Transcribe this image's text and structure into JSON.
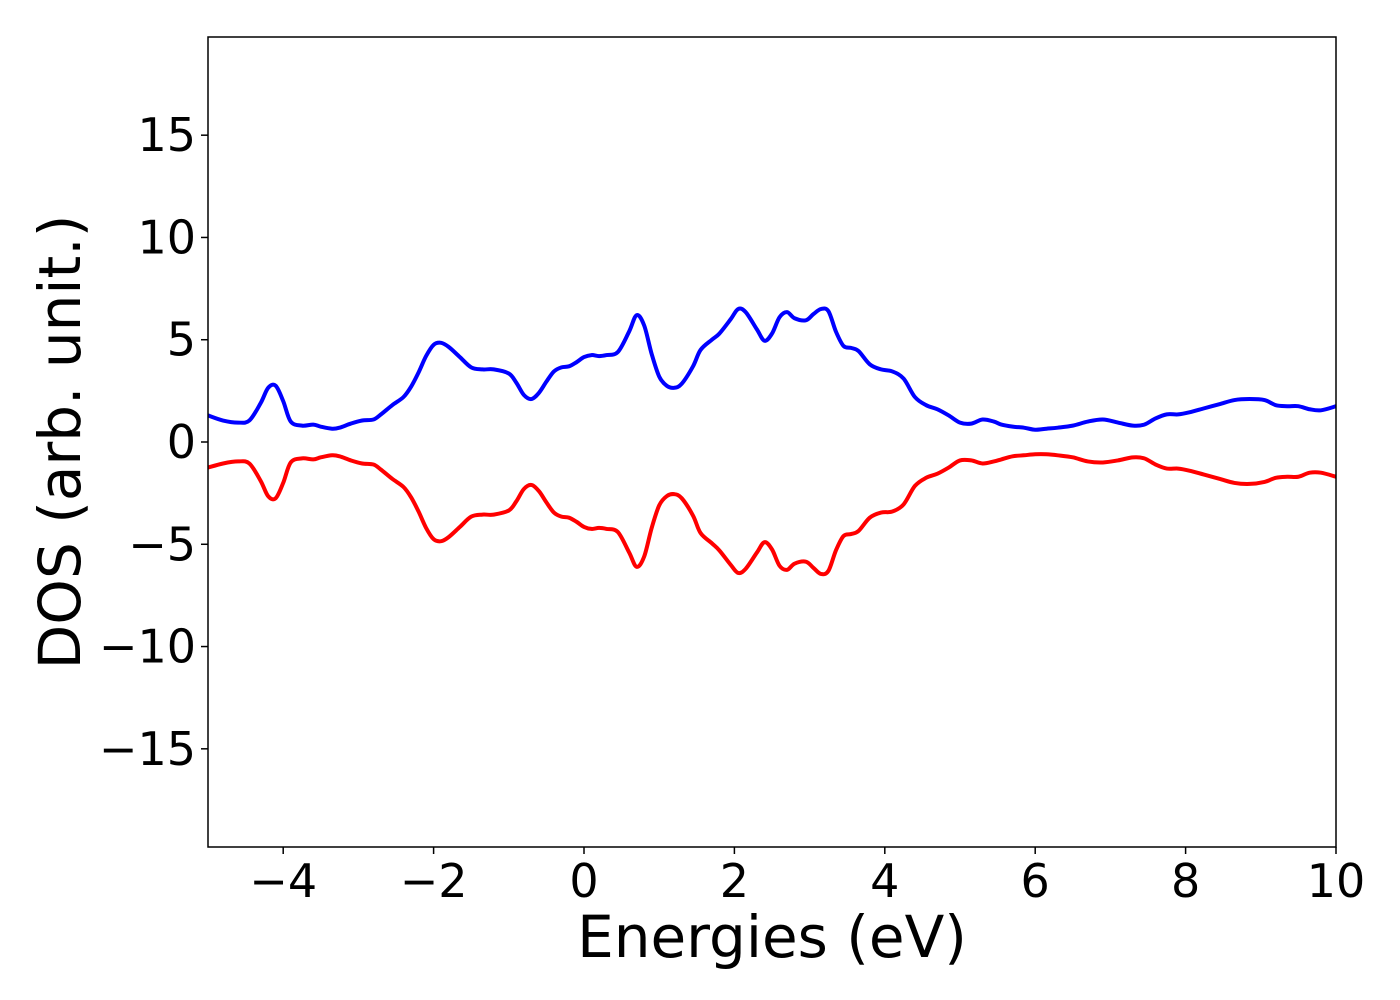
{
  "chart_data": {
    "type": "line",
    "title": "",
    "xlabel": "Energies (eV)",
    "ylabel": "DOS (arb. unit.)",
    "xlim": [
      -5,
      10
    ],
    "ylim": [
      -19.8,
      19.8
    ],
    "xticks": [
      -4,
      -2,
      0,
      2,
      4,
      6,
      8,
      10
    ],
    "xtick_labels": [
      "−4",
      "−2",
      "0",
      "2",
      "4",
      "6",
      "8",
      "10"
    ],
    "yticks": [
      -15,
      -10,
      -5,
      0,
      5,
      10,
      15
    ],
    "ytick_labels": [
      "−15",
      "−10",
      "−5",
      "0",
      "5",
      "10",
      "15"
    ],
    "grid": false,
    "legend": "none",
    "series": [
      {
        "color": "#0000ff",
        "x": [
          -5.0,
          -4.8,
          -4.6,
          -4.45,
          -4.3,
          -4.2,
          -4.1,
          -4.0,
          -3.9,
          -3.75,
          -3.6,
          -3.5,
          -3.35,
          -3.25,
          -3.1,
          -2.95,
          -2.8,
          -2.7,
          -2.55,
          -2.4,
          -2.3,
          -2.2,
          -2.1,
          -2.0,
          -1.9,
          -1.8,
          -1.65,
          -1.5,
          -1.35,
          -1.2,
          -1.0,
          -0.9,
          -0.8,
          -0.7,
          -0.6,
          -0.5,
          -0.4,
          -0.3,
          -0.2,
          -0.1,
          0.0,
          0.1,
          0.2,
          0.3,
          0.45,
          0.6,
          0.7,
          0.8,
          0.9,
          1.0,
          1.1,
          1.2,
          1.3,
          1.45,
          1.55,
          1.7,
          1.8,
          1.95,
          2.05,
          2.15,
          2.3,
          2.4,
          2.5,
          2.6,
          2.7,
          2.8,
          2.95,
          3.05,
          3.15,
          3.25,
          3.35,
          3.45,
          3.55,
          3.65,
          3.8,
          3.95,
          4.1,
          4.25,
          4.4,
          4.55,
          4.7,
          4.85,
          5.0,
          5.15,
          5.3,
          5.45,
          5.55,
          5.7,
          5.85,
          6.0,
          6.15,
          6.3,
          6.5,
          6.7,
          6.9,
          7.1,
          7.3,
          7.45,
          7.6,
          7.75,
          7.9,
          8.05,
          8.25,
          8.45,
          8.65,
          8.85,
          9.05,
          9.2,
          9.35,
          9.5,
          9.65,
          9.8,
          10.0
        ],
        "y": [
          1.3,
          1.05,
          0.95,
          1.05,
          1.9,
          2.65,
          2.75,
          2.0,
          1.0,
          0.8,
          0.85,
          0.75,
          0.65,
          0.7,
          0.9,
          1.05,
          1.1,
          1.35,
          1.8,
          2.2,
          2.7,
          3.4,
          4.2,
          4.75,
          4.85,
          4.65,
          4.15,
          3.65,
          3.55,
          3.55,
          3.35,
          2.9,
          2.3,
          2.1,
          2.4,
          2.95,
          3.45,
          3.65,
          3.7,
          3.9,
          4.15,
          4.25,
          4.2,
          4.25,
          4.4,
          5.4,
          6.2,
          5.7,
          4.3,
          3.2,
          2.75,
          2.65,
          2.85,
          3.7,
          4.5,
          5.0,
          5.3,
          6.0,
          6.5,
          6.35,
          5.5,
          4.95,
          5.3,
          6.1,
          6.35,
          6.05,
          5.95,
          6.25,
          6.5,
          6.4,
          5.4,
          4.7,
          4.6,
          4.45,
          3.8,
          3.55,
          3.45,
          3.1,
          2.2,
          1.8,
          1.6,
          1.3,
          0.95,
          0.9,
          1.1,
          1.0,
          0.85,
          0.75,
          0.7,
          0.6,
          0.65,
          0.7,
          0.8,
          1.0,
          1.1,
          0.95,
          0.8,
          0.85,
          1.15,
          1.35,
          1.35,
          1.45,
          1.65,
          1.85,
          2.05,
          2.1,
          2.05,
          1.8,
          1.75,
          1.75,
          1.6,
          1.55,
          1.75
        ]
      },
      {
        "color": "#ff0000",
        "x": [
          -5.0,
          -4.8,
          -4.6,
          -4.45,
          -4.3,
          -4.2,
          -4.1,
          -4.0,
          -3.9,
          -3.75,
          -3.6,
          -3.5,
          -3.35,
          -3.25,
          -3.1,
          -2.95,
          -2.8,
          -2.7,
          -2.55,
          -2.4,
          -2.3,
          -2.2,
          -2.1,
          -2.0,
          -1.9,
          -1.8,
          -1.65,
          -1.5,
          -1.35,
          -1.2,
          -1.0,
          -0.9,
          -0.8,
          -0.7,
          -0.6,
          -0.5,
          -0.4,
          -0.3,
          -0.2,
          -0.1,
          0.0,
          0.1,
          0.2,
          0.3,
          0.45,
          0.6,
          0.7,
          0.8,
          0.9,
          1.0,
          1.1,
          1.2,
          1.3,
          1.45,
          1.55,
          1.7,
          1.8,
          1.95,
          2.05,
          2.15,
          2.3,
          2.4,
          2.5,
          2.6,
          2.7,
          2.8,
          2.95,
          3.05,
          3.15,
          3.25,
          3.35,
          3.45,
          3.55,
          3.65,
          3.8,
          3.95,
          4.1,
          4.25,
          4.4,
          4.55,
          4.7,
          4.85,
          5.0,
          5.15,
          5.3,
          5.45,
          5.55,
          5.7,
          5.85,
          6.0,
          6.15,
          6.3,
          6.5,
          6.7,
          6.9,
          7.1,
          7.3,
          7.45,
          7.6,
          7.75,
          7.9,
          8.05,
          8.25,
          8.45,
          8.65,
          8.85,
          9.05,
          9.2,
          9.35,
          9.5,
          9.65,
          9.8,
          10.0
        ],
        "y": [
          -1.25,
          -1.05,
          -0.95,
          -1.05,
          -1.9,
          -2.65,
          -2.75,
          -2.0,
          -1.0,
          -0.8,
          -0.85,
          -0.75,
          -0.65,
          -0.7,
          -0.9,
          -1.05,
          -1.1,
          -1.35,
          -1.8,
          -2.2,
          -2.7,
          -3.4,
          -4.2,
          -4.75,
          -4.85,
          -4.65,
          -4.15,
          -3.65,
          -3.55,
          -3.55,
          -3.35,
          -2.9,
          -2.3,
          -2.1,
          -2.4,
          -2.95,
          -3.45,
          -3.65,
          -3.7,
          -3.9,
          -4.15,
          -4.25,
          -4.2,
          -4.25,
          -4.4,
          -5.4,
          -6.1,
          -5.6,
          -4.2,
          -3.1,
          -2.65,
          -2.55,
          -2.75,
          -3.6,
          -4.45,
          -4.95,
          -5.3,
          -6.0,
          -6.4,
          -6.2,
          -5.4,
          -4.9,
          -5.25,
          -6.05,
          -6.25,
          -5.95,
          -5.85,
          -6.15,
          -6.45,
          -6.3,
          -5.3,
          -4.6,
          -4.5,
          -4.35,
          -3.7,
          -3.45,
          -3.4,
          -3.05,
          -2.15,
          -1.75,
          -1.55,
          -1.25,
          -0.9,
          -0.9,
          -1.05,
          -0.95,
          -0.85,
          -0.7,
          -0.65,
          -0.6,
          -0.6,
          -0.65,
          -0.75,
          -0.95,
          -1.0,
          -0.9,
          -0.75,
          -0.8,
          -1.1,
          -1.3,
          -1.3,
          -1.4,
          -1.6,
          -1.8,
          -2.0,
          -2.05,
          -1.95,
          -1.75,
          -1.7,
          -1.7,
          -1.5,
          -1.5,
          -1.7
        ]
      }
    ]
  }
}
